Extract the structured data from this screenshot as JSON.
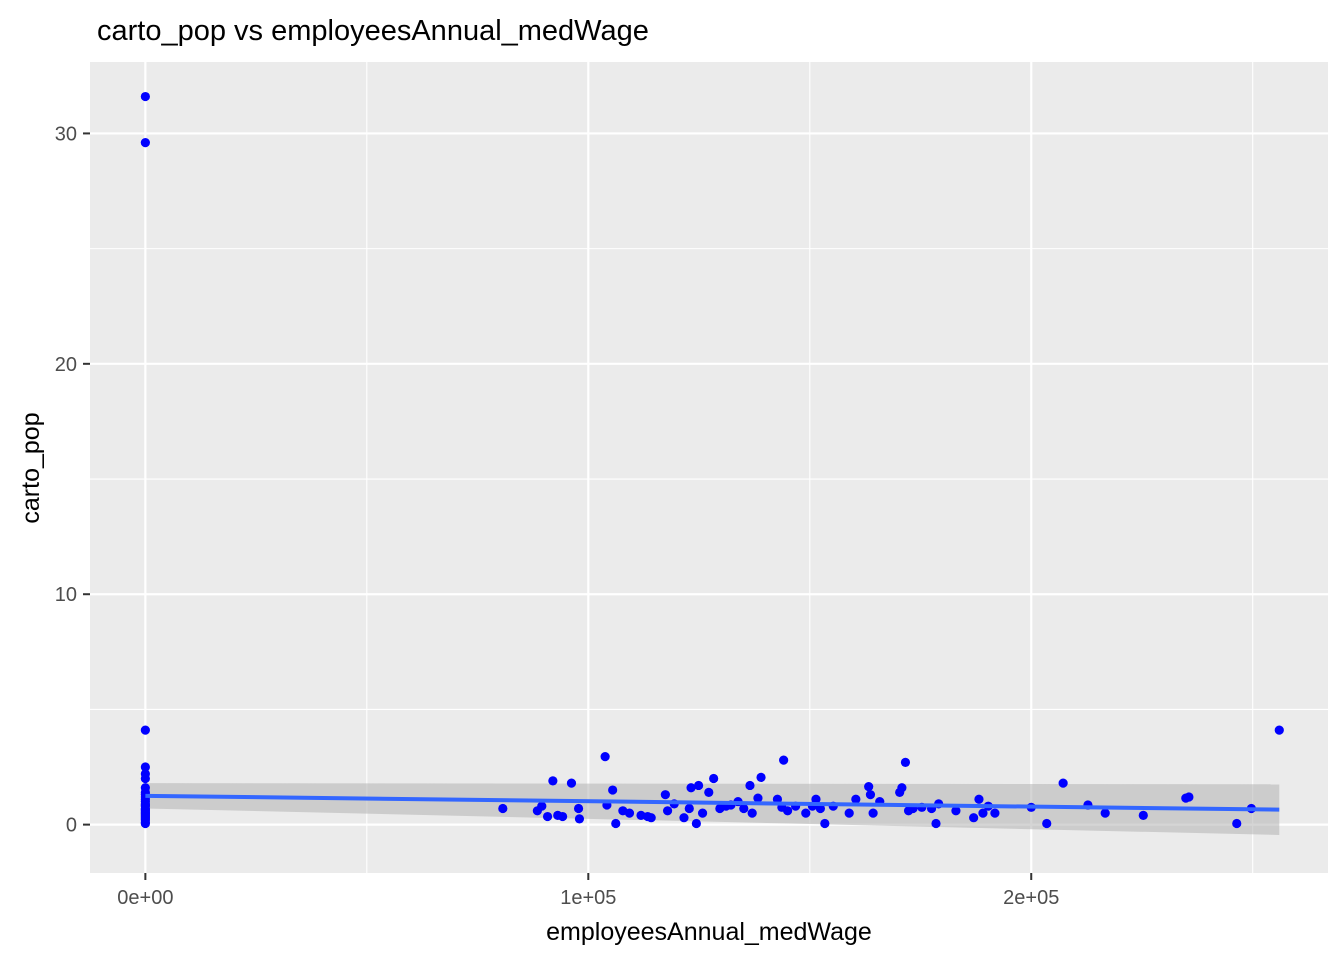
{
  "chart_data": {
    "type": "scatter",
    "title": "carto_pop vs employeesAnnual_medWage",
    "xlabel": "employeesAnnual_medWage",
    "ylabel": "carto_pop",
    "xlim": [
      -12500,
      267000
    ],
    "ylim": [
      -2.1,
      33.1
    ],
    "x_ticks": [
      {
        "value": 0,
        "label": "0e+00"
      },
      {
        "value": 100000,
        "label": "1e+05"
      },
      {
        "value": 200000,
        "label": "2e+05"
      }
    ],
    "x_minor_ticks": [
      50000,
      150000,
      250000
    ],
    "y_ticks": [
      {
        "value": 0,
        "label": "0"
      },
      {
        "value": 10,
        "label": "10"
      },
      {
        "value": 20,
        "label": "20"
      },
      {
        "value": 30,
        "label": "30"
      }
    ],
    "y_minor_ticks": [
      5,
      15,
      25
    ],
    "grid": true,
    "legend": "none",
    "colors": {
      "panel": "#ebebeb",
      "grid": "#ffffff",
      "point": "#0000ff",
      "smooth_line": "#3366ff",
      "confidence_band": "#b3b3b3"
    },
    "points": {
      "x": [
        0,
        0,
        0,
        0,
        0,
        0,
        0,
        0,
        0,
        0,
        0,
        0,
        0,
        0,
        0,
        0,
        0,
        0,
        0,
        0,
        0,
        0,
        0,
        0,
        0,
        0,
        0,
        0,
        80700,
        88500,
        89500,
        90800,
        92000,
        93100,
        94200,
        96200,
        97800,
        98000,
        103800,
        104200,
        105500,
        106200,
        107800,
        109300,
        111900,
        113400,
        114200,
        117400,
        117900,
        119400,
        121600,
        122800,
        123200,
        124400,
        124900,
        125800,
        127200,
        128300,
        129700,
        131100,
        132200,
        133800,
        135100,
        136500,
        137000,
        138300,
        139000,
        142700,
        143700,
        144100,
        145000,
        146800,
        149100,
        150600,
        151400,
        152400,
        153400,
        155300,
        158900,
        160400,
        163300,
        163700,
        164300,
        165800,
        170300,
        170800,
        171600,
        172300,
        173300,
        175300,
        177500,
        178500,
        179100,
        183000,
        187000,
        188200,
        189100,
        190300,
        191800,
        200000,
        203500,
        207200,
        212800,
        216700,
        225300,
        234900,
        235600,
        246400,
        249700,
        256000
      ],
      "y": [
        31.6,
        29.6,
        4.1,
        2.5,
        2.2,
        2.0,
        1.6,
        1.4,
        1.3,
        1.2,
        1.1,
        1.0,
        0.9,
        0.85,
        0.8,
        0.7,
        0.65,
        0.6,
        0.55,
        0.5,
        0.45,
        0.4,
        0.35,
        0.3,
        0.25,
        0.2,
        0.1,
        0.05,
        0.7,
        0.6,
        0.8,
        0.35,
        1.9,
        0.4,
        0.35,
        1.8,
        0.7,
        0.25,
        2.95,
        0.85,
        1.5,
        0.05,
        0.6,
        0.5,
        0.4,
        0.35,
        0.3,
        1.3,
        0.6,
        0.9,
        0.3,
        0.7,
        1.6,
        0.05,
        1.7,
        0.5,
        1.4,
        2.0,
        0.7,
        0.8,
        0.85,
        1.0,
        0.7,
        1.7,
        0.5,
        1.15,
        2.05,
        1.1,
        0.75,
        2.8,
        0.6,
        0.8,
        0.5,
        0.8,
        1.1,
        0.7,
        0.05,
        0.8,
        0.5,
        1.1,
        1.65,
        1.3,
        0.5,
        1.0,
        1.4,
        1.6,
        2.7,
        0.6,
        0.7,
        0.75,
        0.7,
        0.05,
        0.9,
        0.6,
        0.3,
        1.1,
        0.5,
        0.8,
        0.5,
        0.75,
        0.05,
        1.8,
        0.85,
        0.5,
        0.4,
        1.15,
        1.2,
        0.05,
        0.7,
        4.1
      ]
    },
    "smooth": {
      "method": "lm",
      "x": [
        0,
        256000
      ],
      "y": [
        1.25,
        0.65
      ],
      "ci_low": [
        0.7,
        -0.45
      ],
      "ci_high": [
        1.8,
        1.75
      ]
    }
  }
}
